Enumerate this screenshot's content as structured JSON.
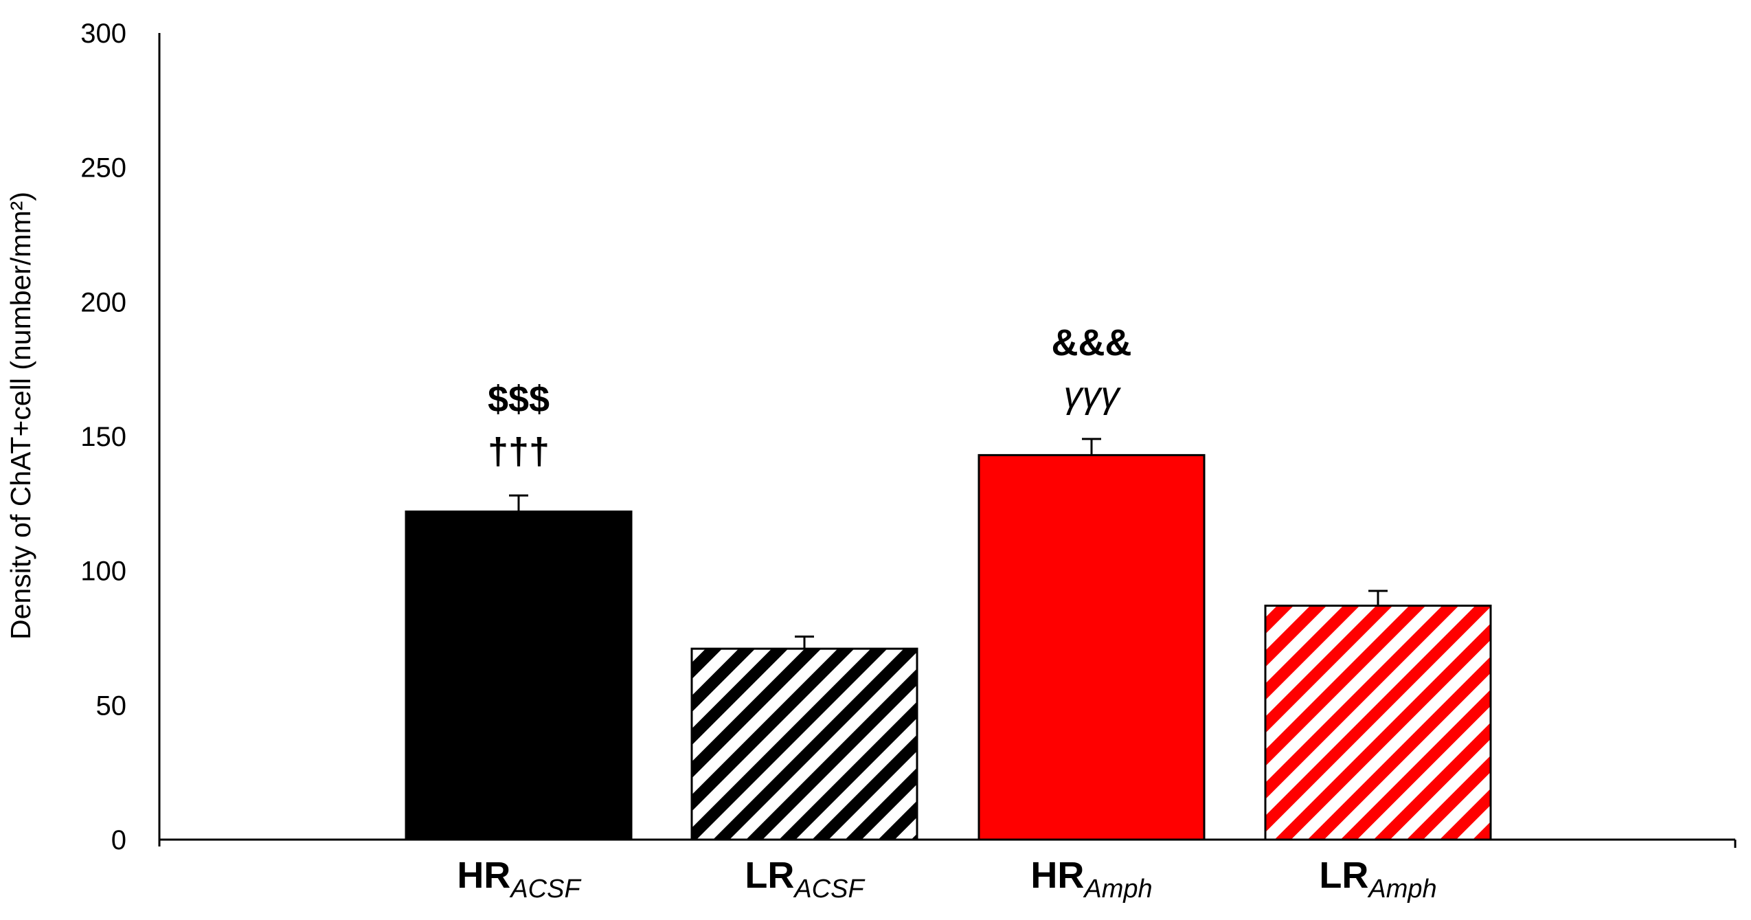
{
  "chart_data": {
    "type": "bar",
    "title": "",
    "xlabel": "",
    "ylabel": "Density of ChAT+cell (number/mm²)",
    "ylim": [
      0,
      300
    ],
    "yticks": [
      0,
      50,
      100,
      150,
      200,
      250,
      300
    ],
    "grid": false,
    "categories": [
      {
        "main": "HR",
        "sub": "ACSF"
      },
      {
        "main": "LR",
        "sub": "ACSF"
      },
      {
        "main": "HR",
        "sub": "Amph"
      },
      {
        "main": "LR",
        "sub": "Amph"
      }
    ],
    "values": [
      122,
      71,
      143,
      87
    ],
    "errors": [
      6,
      4.5,
      6,
      5.5
    ],
    "fills": [
      "solid",
      "hatched",
      "solid",
      "hatched"
    ],
    "colors": [
      "#000000",
      "#000000",
      "#ff0000",
      "#ff0000"
    ],
    "annotations": [
      {
        "bar": 0,
        "lines": [
          "$$$",
          "†††"
        ]
      },
      {
        "bar": 2,
        "lines": [
          "&&&",
          "γγγ"
        ]
      }
    ]
  }
}
